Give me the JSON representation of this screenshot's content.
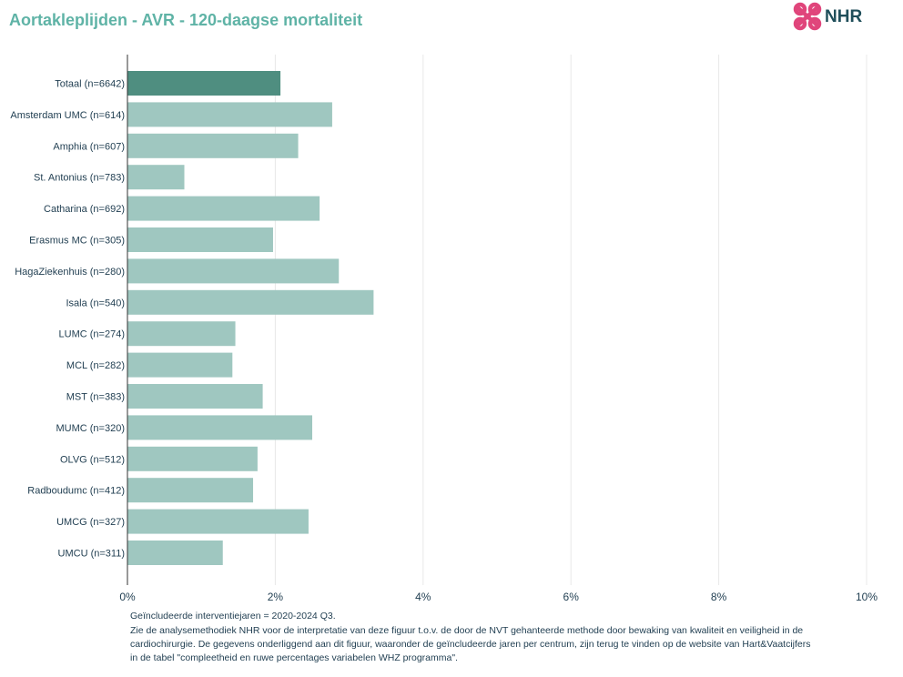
{
  "title": "Aortakleplijden - AVR - 120-daagse mortaliteit",
  "logo": {
    "text": "NHR"
  },
  "colors": {
    "highlight": "#4f8e80",
    "bar": "#9fc7c0",
    "grid": "#e8e8e8",
    "axis": "#1f3d50",
    "title": "#5fb3a6"
  },
  "chart_data": {
    "type": "bar",
    "orientation": "horizontal",
    "categories": [
      "Totaal (n=6642)",
      "Amsterdam UMC (n=614)",
      "Amphia (n=607)",
      "St. Antonius (n=783)",
      "Catharina (n=692)",
      "Erasmus MC (n=305)",
      "HagaZiekenhuis (n=280)",
      "Isala (n=540)",
      "LUMC (n=274)",
      "MCL (n=282)",
      "MST (n=383)",
      "MUMC (n=320)",
      "OLVG (n=512)",
      "Radboudumc (n=412)",
      "UMCG (n=327)",
      "UMCU (n=311)"
    ],
    "values": [
      2.07,
      2.77,
      2.31,
      0.77,
      2.6,
      1.97,
      2.86,
      3.33,
      1.46,
      1.42,
      1.83,
      2.5,
      1.76,
      1.7,
      2.45,
      1.29
    ],
    "highlight_index": 0,
    "xlim": [
      0,
      10
    ],
    "xticks": [
      "0%",
      "2%",
      "4%",
      "6%",
      "8%",
      "10%"
    ],
    "grid": true,
    "xlabel": "",
    "ylabel": ""
  },
  "footnote": {
    "line1": "Geïncludeerde interventiejaren = 2020-2024 Q3.",
    "line2": "Zie de analysemethodiek NHR voor de interpretatie van deze figuur t.o.v. de door de NVT gehanteerde methode door bewaking van kwaliteit en veiligheid in de",
    "line3": "cardiochirurgie. De gegevens onderliggend aan dit figuur, waaronder de geïncludeerde jaren per centrum, zijn terug te vinden op de website van Hart&Vaatcijfers",
    "line4": "in de tabel \"compleetheid en ruwe percentages variabelen WHZ programma\"."
  }
}
